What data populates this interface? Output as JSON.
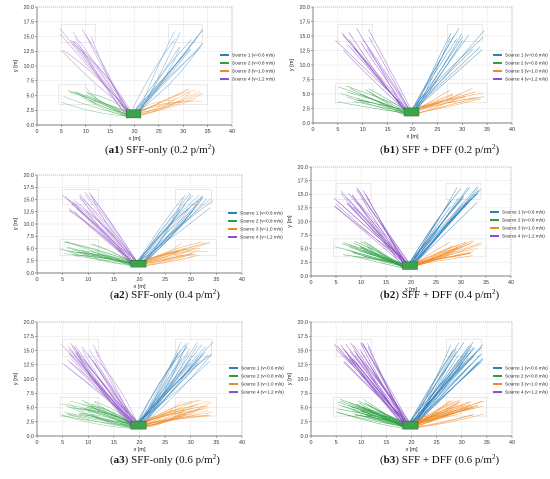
{
  "colors": {
    "source1": "#2f7fb8",
    "source2": "#2ea043",
    "source3": "#f08a24",
    "source4": "#8c52c4",
    "exit": "#3da34a",
    "grid": "#e6e6e6",
    "axis": "#555555"
  },
  "chart_data": [
    {
      "type": "line",
      "panel": "a1",
      "caption": {
        "id": "a1",
        "text": "SFF-only (0.2 p/m",
        "sup": "2",
        "close": ")"
      },
      "xlabel": "x [m]",
      "ylabel": "y [m]",
      "xlim": [
        0,
        40
      ],
      "ylim": [
        0,
        20
      ],
      "xticks": [
        "0",
        "5",
        "10",
        "15",
        "20",
        "25",
        "30",
        "35",
        "40"
      ],
      "yticks": [
        "0.0",
        "2.5",
        "5.0",
        "7.5",
        "10.0",
        "12.5",
        "15.0",
        "17.5",
        "20.0"
      ],
      "model": "SFF",
      "density": 0.2,
      "grid": true,
      "legend": "right",
      "series": [
        {
          "name": "Source 1 (v=0.6 m/s)",
          "start": [
            31,
            14.5
          ],
          "exit": [
            20,
            2
          ]
        },
        {
          "name": "Source 2 (v=0.8 m/s)",
          "start": [
            8,
            5
          ],
          "exit": [
            19,
            1.8
          ]
        },
        {
          "name": "Source 3 (v=1.0 m/s)",
          "start": [
            31,
            5
          ],
          "exit": [
            20,
            1.8
          ]
        },
        {
          "name": "Source 4 (v=1.2 m/s)",
          "start": [
            8,
            14.5
          ],
          "exit": [
            19,
            2
          ]
        }
      ]
    },
    {
      "type": "line",
      "panel": "b1",
      "caption": {
        "id": "b1",
        "text": "SFF + DFF (0.2 p/m",
        "sup": "2",
        "close": ")"
      },
      "xlabel": "x [m]",
      "ylabel": "y [m]",
      "xlim": [
        0,
        40
      ],
      "ylim": [
        0,
        20
      ],
      "xticks": [
        "0",
        "5",
        "10",
        "15",
        "20",
        "25",
        "30",
        "35",
        "40"
      ],
      "yticks": [
        "0.0",
        "2.5",
        "5.0",
        "7.5",
        "10.0",
        "12.5",
        "15.0",
        "17.5",
        "20.0"
      ],
      "model": "DFF",
      "density": 0.2,
      "grid": true,
      "legend": "right",
      "series": [
        {
          "name": "Source 1 (v=0.6 m/s)",
          "start": [
            31,
            14.5
          ],
          "exit": [
            20,
            2
          ]
        },
        {
          "name": "Source 2 (v=0.8 m/s)",
          "start": [
            8,
            5
          ],
          "exit": [
            19,
            1.8
          ]
        },
        {
          "name": "Source 3 (v=1.0 m/s)",
          "start": [
            31,
            5
          ],
          "exit": [
            20,
            1.8
          ]
        },
        {
          "name": "Source 4 (v=1.2 m/s)",
          "start": [
            8,
            14.5
          ],
          "exit": [
            19,
            2
          ]
        }
      ]
    },
    {
      "type": "line",
      "panel": "a2",
      "caption": {
        "id": "a2",
        "text": "SFF-only (0.4 p/m",
        "sup": "2",
        "close": ")"
      },
      "xlabel": "x [m]",
      "ylabel": "y [m]",
      "xlim": [
        0,
        40
      ],
      "ylim": [
        0,
        20
      ],
      "xticks": [
        "0",
        "5",
        "10",
        "15",
        "20",
        "25",
        "30",
        "35",
        "40"
      ],
      "yticks": [
        "0.0",
        "2.5",
        "5.0",
        "7.5",
        "10.0",
        "12.5",
        "15.0",
        "17.5",
        "20.0"
      ],
      "model": "SFF",
      "density": 0.4,
      "grid": true,
      "legend": "right",
      "series": [
        {
          "name": "Source 1 (v=0.6 m/s)",
          "start": [
            31,
            14.5
          ],
          "exit": [
            20,
            2
          ]
        },
        {
          "name": "Source 2 (v=0.8 m/s)",
          "start": [
            8,
            5
          ],
          "exit": [
            19,
            1.8
          ]
        },
        {
          "name": "Source 3 (v=1.0 m/s)",
          "start": [
            31,
            5
          ],
          "exit": [
            20,
            1.8
          ]
        },
        {
          "name": "Source 4 (v=1.2 m/s)",
          "start": [
            8,
            14.5
          ],
          "exit": [
            19,
            2
          ]
        }
      ]
    },
    {
      "type": "line",
      "panel": "b2",
      "caption": {
        "id": "b2",
        "text": "SFF + DFF (0.4 p/m",
        "sup": "2",
        "close": ")"
      },
      "xlabel": "x [m]",
      "ylabel": "y [m]",
      "xlim": [
        0,
        40
      ],
      "ylim": [
        0,
        20
      ],
      "xticks": [
        "0",
        "5",
        "10",
        "15",
        "20",
        "25",
        "30",
        "35",
        "40"
      ],
      "yticks": [
        "0.0",
        "2.5",
        "5.0",
        "7.5",
        "10.0",
        "12.5",
        "15.0",
        "17.5",
        "20.0"
      ],
      "model": "DFF",
      "density": 0.4,
      "grid": true,
      "legend": "right",
      "series": [
        {
          "name": "Source 1 (v=0.6 m/s)",
          "start": [
            31,
            14.5
          ],
          "exit": [
            20,
            2
          ]
        },
        {
          "name": "Source 2 (v=0.8 m/s)",
          "start": [
            8,
            5
          ],
          "exit": [
            19,
            1.8
          ]
        },
        {
          "name": "Source 3 (v=1.0 m/s)",
          "start": [
            31,
            5
          ],
          "exit": [
            20,
            1.8
          ]
        },
        {
          "name": "Source 4 (v=1.2 m/s)",
          "start": [
            8,
            14.5
          ],
          "exit": [
            19,
            2
          ]
        }
      ]
    },
    {
      "type": "line",
      "panel": "a3",
      "caption": {
        "id": "a3",
        "text": "SFF-only (0.6 p/m",
        "sup": "2",
        "close": ")"
      },
      "xlabel": "x [m]",
      "ylabel": "y [m]",
      "xlim": [
        0,
        40
      ],
      "ylim": [
        0,
        20
      ],
      "xticks": [
        "0",
        "5",
        "10",
        "15",
        "20",
        "25",
        "30",
        "35",
        "40"
      ],
      "yticks": [
        "0.0",
        "2.5",
        "5.0",
        "7.5",
        "10.0",
        "12.5",
        "15.0",
        "17.5",
        "20.0"
      ],
      "model": "SFF",
      "density": 0.6,
      "grid": true,
      "legend": "right",
      "series": [
        {
          "name": "Source 1 (v=0.6 m/s)",
          "start": [
            31,
            14.5
          ],
          "exit": [
            20,
            2
          ]
        },
        {
          "name": "Source 2 (v=0.8 m/s)",
          "start": [
            8,
            5
          ],
          "exit": [
            19,
            1.8
          ]
        },
        {
          "name": "Source 3 (v=1.0 m/s)",
          "start": [
            31,
            5
          ],
          "exit": [
            20,
            1.8
          ]
        },
        {
          "name": "Source 4 (v=1.2 m/s)",
          "start": [
            8,
            14.5
          ],
          "exit": [
            19,
            2
          ]
        }
      ]
    },
    {
      "type": "line",
      "panel": "b3",
      "caption": {
        "id": "b3",
        "text": "SFF + DFF (0.6 p/m",
        "sup": "2",
        "close": ")"
      },
      "xlabel": "x [m]",
      "ylabel": "y [m]",
      "xlim": [
        0,
        40
      ],
      "ylim": [
        0,
        20
      ],
      "xticks": [
        "0",
        "5",
        "10",
        "15",
        "20",
        "25",
        "30",
        "35",
        "40"
      ],
      "yticks": [
        "0.0",
        "2.5",
        "5.0",
        "7.5",
        "10.0",
        "12.5",
        "15.0",
        "17.5",
        "20.0"
      ],
      "model": "DFF",
      "density": 0.6,
      "grid": true,
      "legend": "right",
      "series": [
        {
          "name": "Source 1 (v=0.6 m/s)",
          "start": [
            31,
            14.5
          ],
          "exit": [
            20,
            2
          ]
        },
        {
          "name": "Source 2 (v=0.8 m/s)",
          "start": [
            8,
            5
          ],
          "exit": [
            19,
            1.8
          ]
        },
        {
          "name": "Source 3 (v=1.0 m/s)",
          "start": [
            31,
            5
          ],
          "exit": [
            20,
            1.8
          ]
        },
        {
          "name": "Source 4 (v=1.2 m/s)",
          "start": [
            8,
            14.5
          ],
          "exit": [
            19,
            2
          ]
        }
      ]
    }
  ]
}
